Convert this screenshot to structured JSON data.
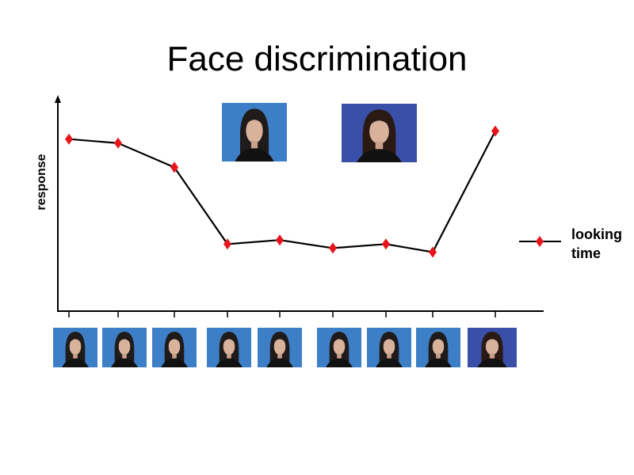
{
  "title": "Face discrimination",
  "colors": {
    "marker": "#e8141b",
    "line": "#000000",
    "photo_bg_a": "#3d7fc7",
    "photo_bg_b": "#3a4fa8"
  },
  "legend": {
    "line1": "looking",
    "line2": "time"
  },
  "top_photos": [
    {
      "icon": "face-photo-a-icon"
    },
    {
      "icon": "face-photo-b-icon"
    }
  ],
  "bottom_photos": [
    {
      "icon": "face-photo-a-icon"
    },
    {
      "icon": "face-photo-a-icon"
    },
    {
      "icon": "face-photo-a-icon"
    },
    {
      "icon": "face-photo-a-icon"
    },
    {
      "icon": "face-photo-a-icon"
    },
    {
      "icon": "face-photo-a-icon"
    },
    {
      "icon": "face-photo-a-icon"
    },
    {
      "icon": "face-photo-a-icon"
    },
    {
      "icon": "face-photo-b-icon"
    }
  ],
  "chart_data": {
    "type": "line",
    "title": "Face discrimination",
    "xlabel": "",
    "ylabel": "response",
    "x": [
      1,
      2,
      3,
      4,
      5,
      6,
      7,
      8,
      9
    ],
    "series": [
      {
        "name": "looking time",
        "values": [
          0.86,
          0.84,
          0.72,
          0.34,
          0.36,
          0.32,
          0.34,
          0.3,
          0.9
        ]
      }
    ],
    "ylim": [
      0,
      1
    ],
    "grid": false,
    "legend_position": "right"
  }
}
